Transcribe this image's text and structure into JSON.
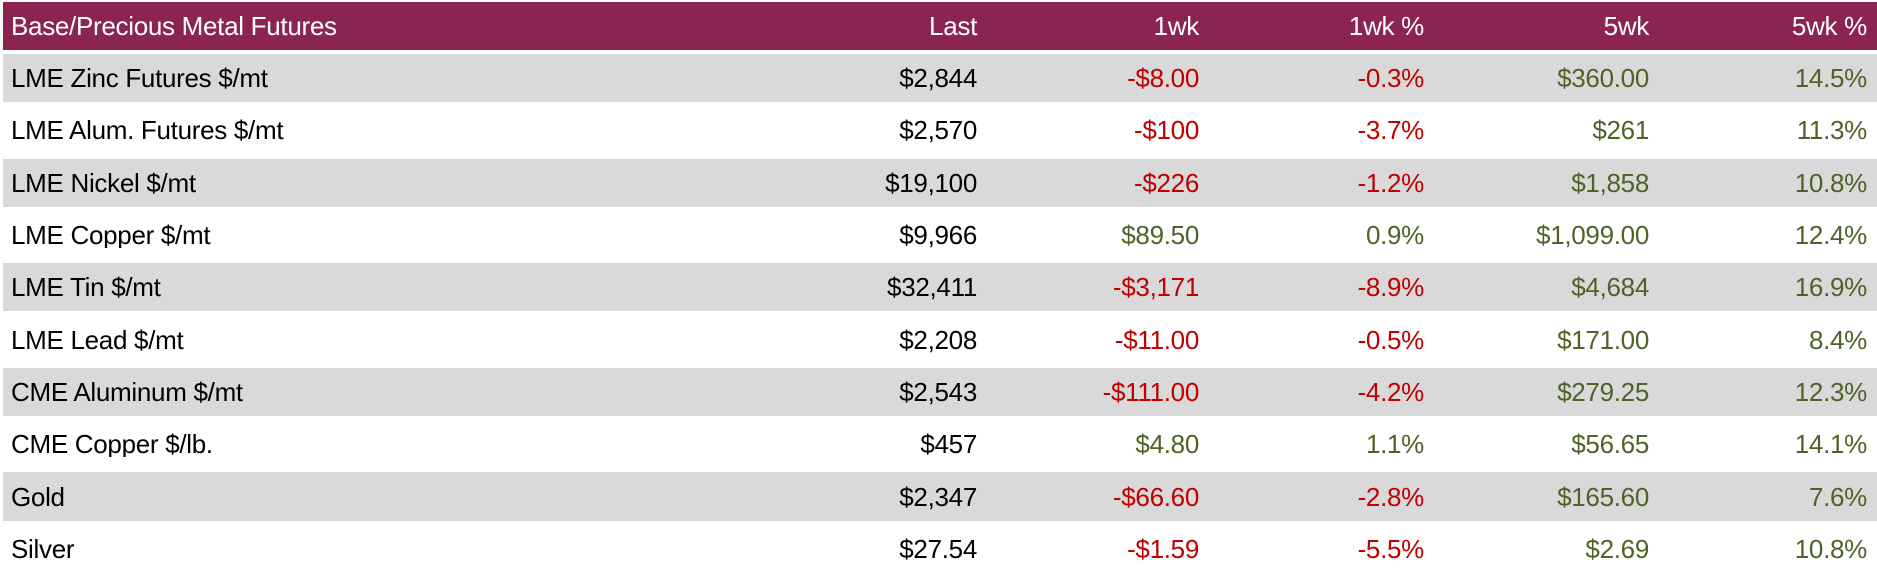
{
  "table": {
    "title": "Base/Precious Metal Futures",
    "columns": [
      "Last",
      "1wk",
      "1wk %",
      "5wk",
      "5wk %"
    ],
    "colors": {
      "header_bg": "#8C2452",
      "header_text": "#FFFFFF",
      "row_alt_bg": "#D9D9D9",
      "negative": "#C00000",
      "positive": "#4F6228",
      "neutral": "#000000"
    },
    "rows": [
      {
        "name": "LME Zinc Futures $/mt",
        "last": "$2,844",
        "wk1": "-$8.00",
        "wk1_pct": "-0.3%",
        "wk5": "$360.00",
        "wk5_pct": "14.5%"
      },
      {
        "name": "LME Alum. Futures $/mt",
        "last": "$2,570",
        "wk1": "-$100",
        "wk1_pct": "-3.7%",
        "wk5": "$261",
        "wk5_pct": "11.3%"
      },
      {
        "name": "LME Nickel $/mt",
        "last": "$19,100",
        "wk1": "-$226",
        "wk1_pct": "-1.2%",
        "wk5": "$1,858",
        "wk5_pct": "10.8%"
      },
      {
        "name": "LME Copper $/mt",
        "last": "$9,966",
        "wk1": "$89.50",
        "wk1_pct": "0.9%",
        "wk5": "$1,099.00",
        "wk5_pct": "12.4%"
      },
      {
        "name": "LME Tin $/mt",
        "last": "$32,411",
        "wk1": "-$3,171",
        "wk1_pct": "-8.9%",
        "wk5": "$4,684",
        "wk5_pct": "16.9%"
      },
      {
        "name": "LME Lead $/mt",
        "last": "$2,208",
        "wk1": "-$11.00",
        "wk1_pct": "-0.5%",
        "wk5": "$171.00",
        "wk5_pct": "8.4%"
      },
      {
        "name": "CME Aluminum $/mt",
        "last": "$2,543",
        "wk1": "-$111.00",
        "wk1_pct": "-4.2%",
        "wk5": "$279.25",
        "wk5_pct": "12.3%"
      },
      {
        "name": "CME Copper $/lb.",
        "last": "$457",
        "wk1": "$4.80",
        "wk1_pct": "1.1%",
        "wk5": "$56.65",
        "wk5_pct": "14.1%"
      },
      {
        "name": "Gold",
        "last": "$2,347",
        "wk1": "-$66.60",
        "wk1_pct": "-2.8%",
        "wk5": "$165.60",
        "wk5_pct": "7.6%"
      },
      {
        "name": "Silver",
        "last": "$27.54",
        "wk1": "-$1.59",
        "wk1_pct": "-5.5%",
        "wk5": "$2.69",
        "wk5_pct": "10.8%"
      }
    ]
  },
  "chart_data": {
    "type": "table",
    "title": "Base/Precious Metal Futures",
    "columns": [
      "Base/Precious Metal Futures",
      "Last",
      "1wk",
      "1wk %",
      "5wk",
      "5wk %"
    ],
    "rows": [
      [
        "LME Zinc Futures $/mt",
        "$2,844",
        "-$8.00",
        "-0.3%",
        "$360.00",
        "14.5%"
      ],
      [
        "LME Alum. Futures $/mt",
        "$2,570",
        "-$100",
        "-3.7%",
        "$261",
        "11.3%"
      ],
      [
        "LME Nickel $/mt",
        "$19,100",
        "-$226",
        "-1.2%",
        "$1,858",
        "10.8%"
      ],
      [
        "LME Copper $/mt",
        "$9,966",
        "$89.50",
        "0.9%",
        "$1,099.00",
        "12.4%"
      ],
      [
        "LME Tin $/mt",
        "$32,411",
        "-$3,171",
        "-8.9%",
        "$4,684",
        "16.9%"
      ],
      [
        "LME Lead $/mt",
        "$2,208",
        "-$11.00",
        "-0.5%",
        "$171.00",
        "8.4%"
      ],
      [
        "CME Aluminum $/mt",
        "$2,543",
        "-$111.00",
        "-4.2%",
        "$279.25",
        "12.3%"
      ],
      [
        "CME Copper $/lb.",
        "$457",
        "$4.80",
        "1.1%",
        "$56.65",
        "14.1%"
      ],
      [
        "Gold",
        "$2,347",
        "-$66.60",
        "-2.8%",
        "$165.60",
        "7.6%"
      ],
      [
        "Silver",
        "$27.54",
        "-$1.59",
        "-5.5%",
        "$2.69",
        "10.8%"
      ]
    ],
    "numeric": {
      "last": [
        2844,
        2570,
        19100,
        9966,
        32411,
        2208,
        2543,
        457,
        2347,
        27.54
      ],
      "wk1": [
        -8.0,
        -100,
        -226,
        89.5,
        -3171,
        -11.0,
        -111.0,
        4.8,
        -66.6,
        -1.59
      ],
      "wk1_pct": [
        -0.3,
        -3.7,
        -1.2,
        0.9,
        -8.9,
        -0.5,
        -4.2,
        1.1,
        -2.8,
        -5.5
      ],
      "wk5": [
        360.0,
        261,
        1858,
        1099.0,
        4684,
        171.0,
        279.25,
        56.65,
        165.6,
        2.69
      ],
      "wk5_pct": [
        14.5,
        11.3,
        10.8,
        12.4,
        16.9,
        8.4,
        12.3,
        14.1,
        7.6,
        10.8
      ]
    },
    "layout_hints": {
      "header_fill": "#8C2452",
      "banded_rows": true,
      "negative_color": "#C00000",
      "positive_color": "#4F6228"
    }
  }
}
